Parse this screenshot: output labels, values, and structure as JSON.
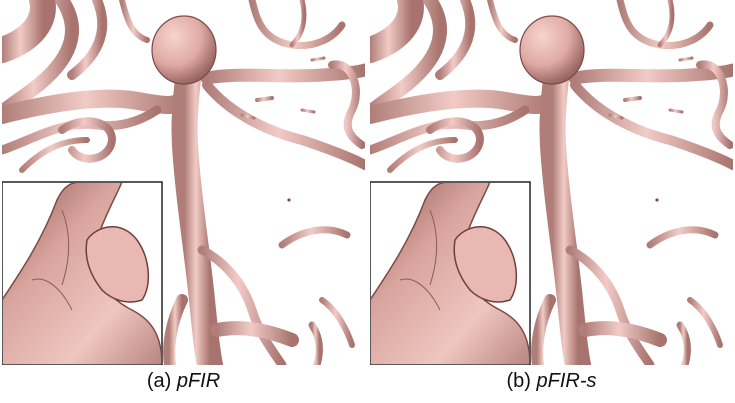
{
  "panels": [
    {
      "prefix": "(a) ",
      "name": "pFIR"
    },
    {
      "prefix": "(b) ",
      "name": "pFIR-s"
    }
  ],
  "colors": {
    "vessel_fill": "#e7b3ad",
    "vessel_highlight": "#f6d3cf",
    "vessel_shadow": "#7a4a46",
    "background": "#ffffff",
    "inset_border": "#222222"
  }
}
